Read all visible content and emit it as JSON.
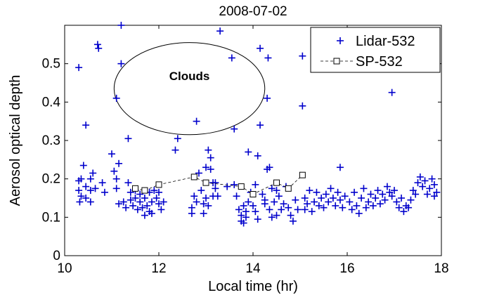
{
  "chart_data": {
    "type": "scatter",
    "title": "2008-07-02",
    "xlabel": "Local time (hr)",
    "ylabel": "Aerosol optical depth",
    "xlim": [
      10,
      18
    ],
    "ylim": [
      0,
      0.6
    ],
    "xticks": [
      "10",
      "12",
      "14",
      "16",
      "18"
    ],
    "yticks": [
      "0",
      "0.1",
      "0.2",
      "0.3",
      "0.4",
      "0.5"
    ],
    "grid": false,
    "legend_position": "top-right",
    "annotation": {
      "text": "Clouds",
      "ellipse_center": [
        12.65,
        0.435
      ],
      "ellipse_radii": [
        1.6,
        0.12
      ]
    },
    "series": [
      {
        "name": "Lidar-532",
        "marker": "+",
        "color": "#0000cc",
        "points": [
          [
            10.3,
            0.49
          ],
          [
            10.45,
            0.34
          ],
          [
            10.4,
            0.235
          ],
          [
            10.3,
            0.195
          ],
          [
            10.35,
            0.2
          ],
          [
            10.3,
            0.17
          ],
          [
            10.35,
            0.155
          ],
          [
            10.32,
            0.14
          ],
          [
            10.45,
            0.18
          ],
          [
            10.45,
            0.15
          ],
          [
            10.55,
            0.2
          ],
          [
            10.55,
            0.17
          ],
          [
            10.55,
            0.14
          ],
          [
            10.6,
            0.215
          ],
          [
            10.65,
            0.175
          ],
          [
            10.7,
            0.55
          ],
          [
            10.72,
            0.54
          ],
          [
            10.8,
            0.19
          ],
          [
            10.85,
            0.165
          ],
          [
            11.0,
            0.265
          ],
          [
            11.05,
            0.22
          ],
          [
            11.1,
            0.41
          ],
          [
            11.1,
            0.2
          ],
          [
            11.15,
            0.24
          ],
          [
            11.1,
            0.175
          ],
          [
            11.15,
            0.135
          ],
          [
            11.2,
            0.6
          ],
          [
            11.2,
            0.5
          ],
          [
            11.25,
            0.14
          ],
          [
            11.3,
            0.125
          ],
          [
            11.35,
            0.305
          ],
          [
            11.35,
            0.19
          ],
          [
            11.4,
            0.165
          ],
          [
            11.4,
            0.145
          ],
          [
            11.45,
            0.13
          ],
          [
            11.5,
            0.17
          ],
          [
            11.5,
            0.15
          ],
          [
            11.55,
            0.12
          ],
          [
            11.6,
            0.16
          ],
          [
            11.6,
            0.14
          ],
          [
            11.65,
            0.125
          ],
          [
            11.7,
            0.105
          ],
          [
            11.7,
            0.15
          ],
          [
            11.75,
            0.13
          ],
          [
            11.8,
            0.115
          ],
          [
            11.8,
            0.165
          ],
          [
            11.85,
            0.11
          ],
          [
            11.85,
            0.14
          ],
          [
            11.9,
            0.17
          ],
          [
            11.95,
            0.15
          ],
          [
            12.0,
            0.135
          ],
          [
            12.0,
            0.165
          ],
          [
            12.05,
            0.12
          ],
          [
            12.1,
            0.14
          ],
          [
            12.35,
            0.275
          ],
          [
            12.4,
            0.305
          ],
          [
            12.7,
            0.11
          ],
          [
            12.7,
            0.125
          ],
          [
            12.75,
            0.155
          ],
          [
            12.8,
            0.35
          ],
          [
            12.8,
            0.14
          ],
          [
            12.85,
            0.215
          ],
          [
            12.9,
            0.17
          ],
          [
            12.95,
            0.135
          ],
          [
            12.95,
            0.11
          ],
          [
            13.0,
            0.23
          ],
          [
            13.0,
            0.15
          ],
          [
            13.05,
            0.275
          ],
          [
            13.05,
            0.13
          ],
          [
            13.1,
            0.255
          ],
          [
            13.1,
            0.225
          ],
          [
            13.15,
            0.155
          ],
          [
            13.15,
            0.19
          ],
          [
            13.2,
            0.19
          ],
          [
            13.2,
            0.175
          ],
          [
            13.25,
            0.155
          ],
          [
            13.3,
            0.585
          ],
          [
            13.45,
            0.18
          ],
          [
            13.55,
            0.515
          ],
          [
            13.6,
            0.33
          ],
          [
            13.6,
            0.185
          ],
          [
            13.65,
            0.155
          ],
          [
            13.7,
            0.12
          ],
          [
            13.75,
            0.105
          ],
          [
            13.75,
            0.09
          ],
          [
            13.8,
            0.13
          ],
          [
            13.8,
            0.085
          ],
          [
            13.85,
            0.1
          ],
          [
            13.85,
            0.115
          ],
          [
            13.9,
            0.14
          ],
          [
            13.9,
            0.27
          ],
          [
            13.95,
            0.165
          ],
          [
            14.0,
            0.13
          ],
          [
            14.05,
            0.185
          ],
          [
            14.05,
            0.115
          ],
          [
            14.1,
            0.26
          ],
          [
            14.1,
            0.095
          ],
          [
            14.15,
            0.54
          ],
          [
            14.15,
            0.34
          ],
          [
            14.2,
            0.16
          ],
          [
            14.25,
            0.135
          ],
          [
            14.25,
            0.145
          ],
          [
            14.3,
            0.41
          ],
          [
            14.3,
            0.225
          ],
          [
            14.32,
            0.515
          ],
          [
            14.35,
            0.23
          ],
          [
            14.35,
            0.12
          ],
          [
            14.4,
            0.175
          ],
          [
            14.4,
            0.1
          ],
          [
            14.45,
            0.14
          ],
          [
            14.5,
            0.17
          ],
          [
            14.5,
            0.105
          ],
          [
            14.55,
            0.155
          ],
          [
            14.6,
            0.12
          ],
          [
            14.65,
            0.135
          ],
          [
            14.7,
            0.18
          ],
          [
            14.75,
            0.125
          ],
          [
            14.8,
            0.105
          ],
          [
            14.85,
            0.09
          ],
          [
            14.9,
            0.145
          ],
          [
            14.95,
            0.12
          ],
          [
            15.05,
            0.52
          ],
          [
            15.05,
            0.39
          ],
          [
            15.1,
            0.15
          ],
          [
            15.1,
            0.12
          ],
          [
            15.15,
            0.135
          ],
          [
            15.2,
            0.17
          ],
          [
            15.25,
            0.115
          ],
          [
            15.3,
            0.14
          ],
          [
            15.35,
            0.165
          ],
          [
            15.4,
            0.13
          ],
          [
            15.45,
            0.15
          ],
          [
            15.5,
            0.125
          ],
          [
            15.55,
            0.16
          ],
          [
            15.6,
            0.14
          ],
          [
            15.65,
            0.175
          ],
          [
            15.7,
            0.15
          ],
          [
            15.75,
            0.13
          ],
          [
            15.8,
            0.165
          ],
          [
            15.85,
            0.23
          ],
          [
            15.85,
            0.145
          ],
          [
            15.9,
            0.125
          ],
          [
            15.95,
            0.155
          ],
          [
            16.05,
            0.14
          ],
          [
            16.1,
            0.12
          ],
          [
            16.15,
            0.165
          ],
          [
            16.2,
            0.13
          ],
          [
            16.25,
            0.11
          ],
          [
            16.3,
            0.15
          ],
          [
            16.35,
            0.175
          ],
          [
            16.4,
            0.125
          ],
          [
            16.45,
            0.14
          ],
          [
            16.5,
            0.16
          ],
          [
            16.55,
            0.13
          ],
          [
            16.6,
            0.15
          ],
          [
            16.65,
            0.17
          ],
          [
            16.7,
            0.135
          ],
          [
            16.75,
            0.16
          ],
          [
            16.8,
            0.145
          ],
          [
            16.85,
            0.18
          ],
          [
            16.9,
            0.165
          ],
          [
            16.95,
            0.155
          ],
          [
            16.95,
            0.425
          ],
          [
            17.0,
            0.17
          ],
          [
            17.05,
            0.14
          ],
          [
            17.1,
            0.125
          ],
          [
            17.15,
            0.15
          ],
          [
            17.2,
            0.115
          ],
          [
            17.25,
            0.13
          ],
          [
            17.3,
            0.125
          ],
          [
            17.35,
            0.145
          ],
          [
            17.4,
            0.17
          ],
          [
            17.45,
            0.16
          ],
          [
            17.5,
            0.19
          ],
          [
            17.55,
            0.205
          ],
          [
            17.6,
            0.18
          ],
          [
            17.65,
            0.195
          ],
          [
            17.7,
            0.16
          ],
          [
            17.75,
            0.175
          ],
          [
            17.8,
            0.2
          ],
          [
            17.85,
            0.185
          ],
          [
            17.9,
            0.165
          ],
          [
            17.85,
            0.155
          ]
        ]
      },
      {
        "name": "SP-532",
        "marker": "square",
        "line": "dashed",
        "color": "#000000",
        "points": [
          [
            11.5,
            0.175
          ],
          [
            11.7,
            0.17
          ],
          [
            12.0,
            0.185
          ],
          [
            12.75,
            0.205
          ],
          [
            13.0,
            0.19
          ],
          [
            13.75,
            0.18
          ],
          [
            14.0,
            0.16
          ],
          [
            14.5,
            0.19
          ],
          [
            14.75,
            0.175
          ],
          [
            15.05,
            0.21
          ]
        ]
      }
    ]
  }
}
